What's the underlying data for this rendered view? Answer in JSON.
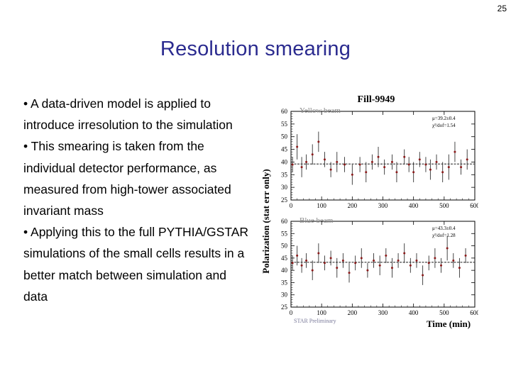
{
  "page_number": "25",
  "title": "Resolution smearing",
  "bullets": [
    "• A data-driven model is applied to introduce irresolution to the simulation",
    "• This smearing is taken from the individual detector performance, as measured from high-tower associated invariant mass",
    "• Applying this to the full PYTHIA/GSTAR simulations of the small cells results in a better match between simulation and data"
  ],
  "chart_data": {
    "title": "Fill-9949",
    "ylabel": "Polarization (stat err only)",
    "xlabel": "Time (min)",
    "watermark": "STAR Preliminary",
    "panels": [
      {
        "type": "scatter",
        "name": "Yellow beam",
        "fit_mu": "μ=39.2±0.4",
        "fit_chi2": "χ²/dof=1.54",
        "fit_value": 39.2,
        "xlim": [
          0,
          600
        ],
        "ylim": [
          25,
          60
        ],
        "xticks": [
          0,
          100,
          200,
          300,
          400,
          500,
          600
        ],
        "yticks": [
          25,
          30,
          35,
          40,
          45,
          50,
          55,
          60
        ],
        "points": [
          {
            "x": 5,
            "y": 39,
            "e": 3
          },
          {
            "x": 20,
            "y": 46,
            "e": 5
          },
          {
            "x": 35,
            "y": 38,
            "e": 4
          },
          {
            "x": 50,
            "y": 40,
            "e": 3
          },
          {
            "x": 70,
            "y": 43,
            "e": 4
          },
          {
            "x": 90,
            "y": 48,
            "e": 4
          },
          {
            "x": 110,
            "y": 41,
            "e": 3
          },
          {
            "x": 130,
            "y": 37,
            "e": 3
          },
          {
            "x": 150,
            "y": 40,
            "e": 4
          },
          {
            "x": 175,
            "y": 39,
            "e": 3
          },
          {
            "x": 200,
            "y": 35,
            "e": 4
          },
          {
            "x": 225,
            "y": 39,
            "e": 3
          },
          {
            "x": 245,
            "y": 36,
            "e": 4
          },
          {
            "x": 265,
            "y": 40,
            "e": 3
          },
          {
            "x": 285,
            "y": 42,
            "e": 4
          },
          {
            "x": 305,
            "y": 38,
            "e": 3
          },
          {
            "x": 330,
            "y": 40,
            "e": 3
          },
          {
            "x": 345,
            "y": 36,
            "e": 4
          },
          {
            "x": 370,
            "y": 42,
            "e": 3
          },
          {
            "x": 385,
            "y": 39,
            "e": 3
          },
          {
            "x": 400,
            "y": 36,
            "e": 4
          },
          {
            "x": 420,
            "y": 41,
            "e": 3
          },
          {
            "x": 440,
            "y": 39,
            "e": 3
          },
          {
            "x": 455,
            "y": 37,
            "e": 4
          },
          {
            "x": 475,
            "y": 40,
            "e": 3
          },
          {
            "x": 495,
            "y": 36,
            "e": 4
          },
          {
            "x": 515,
            "y": 38,
            "e": 5
          },
          {
            "x": 535,
            "y": 44,
            "e": 4
          },
          {
            "x": 555,
            "y": 38,
            "e": 3
          },
          {
            "x": 575,
            "y": 41,
            "e": 4
          }
        ]
      },
      {
        "type": "scatter",
        "name": "Blue beam",
        "fit_mu": "μ=43.3±0.4",
        "fit_chi2": "χ²/dof=1.28",
        "fit_value": 43.3,
        "xlim": [
          0,
          600
        ],
        "ylim": [
          25,
          60
        ],
        "xticks": [
          0,
          100,
          200,
          300,
          400,
          500,
          600
        ],
        "yticks": [
          25,
          30,
          35,
          40,
          45,
          50,
          55,
          60
        ],
        "points": [
          {
            "x": 5,
            "y": 43,
            "e": 3
          },
          {
            "x": 20,
            "y": 46,
            "e": 4
          },
          {
            "x": 35,
            "y": 42,
            "e": 3
          },
          {
            "x": 50,
            "y": 44,
            "e": 3
          },
          {
            "x": 70,
            "y": 40,
            "e": 4
          },
          {
            "x": 90,
            "y": 47,
            "e": 4
          },
          {
            "x": 110,
            "y": 43,
            "e": 3
          },
          {
            "x": 130,
            "y": 45,
            "e": 3
          },
          {
            "x": 150,
            "y": 41,
            "e": 4
          },
          {
            "x": 170,
            "y": 44,
            "e": 3
          },
          {
            "x": 190,
            "y": 39,
            "e": 4
          },
          {
            "x": 210,
            "y": 43,
            "e": 3
          },
          {
            "x": 230,
            "y": 45,
            "e": 4
          },
          {
            "x": 250,
            "y": 40,
            "e": 3
          },
          {
            "x": 270,
            "y": 44,
            "e": 3
          },
          {
            "x": 290,
            "y": 42,
            "e": 4
          },
          {
            "x": 310,
            "y": 46,
            "e": 3
          },
          {
            "x": 330,
            "y": 41,
            "e": 4
          },
          {
            "x": 350,
            "y": 44,
            "e": 3
          },
          {
            "x": 370,
            "y": 47,
            "e": 4
          },
          {
            "x": 390,
            "y": 42,
            "e": 3
          },
          {
            "x": 410,
            "y": 44,
            "e": 3
          },
          {
            "x": 430,
            "y": 38,
            "e": 4
          },
          {
            "x": 450,
            "y": 43,
            "e": 3
          },
          {
            "x": 470,
            "y": 45,
            "e": 4
          },
          {
            "x": 490,
            "y": 42,
            "e": 3
          },
          {
            "x": 510,
            "y": 49,
            "e": 5
          },
          {
            "x": 530,
            "y": 44,
            "e": 3
          },
          {
            "x": 550,
            "y": 41,
            "e": 4
          },
          {
            "x": 570,
            "y": 46,
            "e": 3
          }
        ]
      }
    ]
  },
  "colors": {
    "title": "#2b2b8f",
    "panel_label": "#8a8a8a",
    "fit_line": "#4a4a4a",
    "marker": "#8b1a1a",
    "error_bar": "#333333"
  }
}
